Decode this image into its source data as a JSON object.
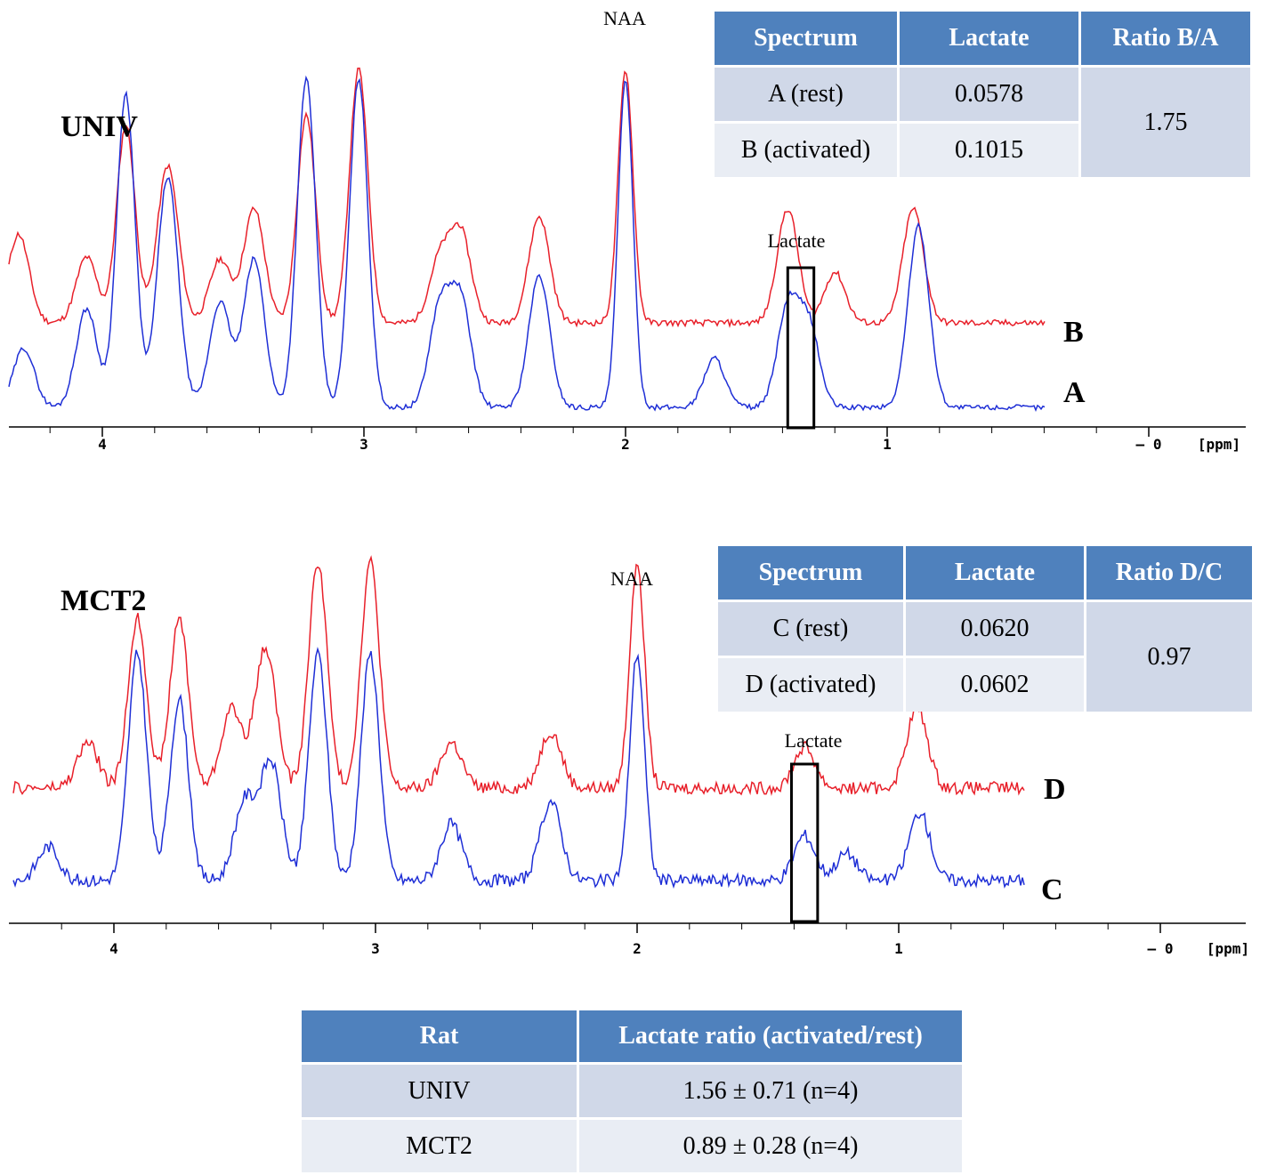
{
  "colors": {
    "spectrum_red": "#e8202a",
    "spectrum_blue": "#1f2fd6",
    "header_bg": "#4f81bd",
    "row_dark": "#d0d8e8",
    "row_light": "#e9edf4"
  },
  "chart_data": [
    {
      "type": "line",
      "title": "UNIV",
      "xlabel": "[ppm]",
      "x_axis": "reversed",
      "xlim": [
        4.35,
        -0.35
      ],
      "x_ticks": [
        "4",
        "3",
        "2",
        "1",
        "– 0"
      ],
      "annotations": [
        "NAA",
        "Lactate"
      ],
      "highlight_box_ppm": [
        1.28,
        1.38
      ],
      "series": [
        {
          "name": "B",
          "color": "#e8202a",
          "peaks": [
            [
              4.32,
              0.35
            ],
            [
              4.06,
              0.26
            ],
            [
              3.91,
              0.78
            ],
            [
              3.75,
              0.62
            ],
            [
              3.55,
              0.25
            ],
            [
              3.42,
              0.45
            ],
            [
              3.22,
              0.82
            ],
            [
              3.02,
              1.0
            ],
            [
              2.71,
              0.25
            ],
            [
              2.63,
              0.35
            ],
            [
              2.33,
              0.42
            ],
            [
              2.0,
              1.0
            ],
            [
              1.38,
              0.45
            ],
            [
              1.2,
              0.2
            ],
            [
              0.9,
              0.45
            ]
          ]
        },
        {
          "name": "A",
          "color": "#1f2fd6",
          "peaks": [
            [
              4.3,
              0.18
            ],
            [
              4.06,
              0.3
            ],
            [
              3.91,
              0.95
            ],
            [
              3.75,
              0.7
            ],
            [
              3.55,
              0.32
            ],
            [
              3.42,
              0.45
            ],
            [
              3.22,
              1.0
            ],
            [
              3.02,
              1.0
            ],
            [
              2.71,
              0.3
            ],
            [
              2.63,
              0.32
            ],
            [
              2.33,
              0.4
            ],
            [
              2.0,
              1.0
            ],
            [
              1.66,
              0.15
            ],
            [
              1.38,
              0.3
            ],
            [
              1.3,
              0.25
            ],
            [
              0.88,
              0.55
            ]
          ]
        }
      ]
    },
    {
      "type": "line",
      "title": "MCT2",
      "xlabel": "[ppm]",
      "x_axis": "reversed",
      "xlim": [
        4.35,
        -0.35
      ],
      "x_ticks": [
        "4",
        "3",
        "2",
        "1",
        "– 0"
      ],
      "annotations": [
        "NAA",
        "Lactate"
      ],
      "highlight_box_ppm": [
        1.31,
        1.41
      ],
      "series": [
        {
          "name": "D",
          "color": "#e8202a",
          "peaks": [
            [
              4.1,
              0.2
            ],
            [
              3.91,
              0.75
            ],
            [
              3.75,
              0.75
            ],
            [
              3.55,
              0.35
            ],
            [
              3.42,
              0.62
            ],
            [
              3.22,
              1.0
            ],
            [
              3.02,
              1.0
            ],
            [
              2.71,
              0.2
            ],
            [
              2.33,
              0.25
            ],
            [
              2.0,
              1.0
            ],
            [
              1.36,
              0.18
            ],
            [
              0.93,
              0.35
            ]
          ]
        },
        {
          "name": "C",
          "color": "#1f2fd6",
          "peaks": [
            [
              4.25,
              0.15
            ],
            [
              3.91,
              1.0
            ],
            [
              3.75,
              0.8
            ],
            [
              3.5,
              0.35
            ],
            [
              3.4,
              0.52
            ],
            [
              3.22,
              1.0
            ],
            [
              3.02,
              1.0
            ],
            [
              2.71,
              0.25
            ],
            [
              2.33,
              0.35
            ],
            [
              2.0,
              1.0
            ],
            [
              1.36,
              0.2
            ],
            [
              1.2,
              0.12
            ],
            [
              0.92,
              0.3
            ]
          ]
        }
      ]
    }
  ],
  "panels": {
    "univ": {
      "title": "UNIV",
      "naa": "NAA",
      "lactate": "Lactate",
      "upper_label": "B",
      "lower_label": "A",
      "axis_unit": "[ppm]",
      "ticks": [
        "4",
        "3",
        "2",
        "1",
        "– 0"
      ]
    },
    "mct2": {
      "title": "MCT2",
      "naa": "NAA",
      "lactate": "Lactate",
      "upper_label": "D",
      "lower_label": "C",
      "axis_unit": "[ppm]",
      "ticks": [
        "4",
        "3",
        "2",
        "1",
        "– 0"
      ]
    }
  },
  "tables": {
    "univ": {
      "headers": [
        "Spectrum",
        "Lactate",
        "Ratio B/A"
      ],
      "rows": [
        [
          "A (rest)",
          "0.0578"
        ],
        [
          "B (activated)",
          "0.1015"
        ]
      ],
      "ratio": "1.75"
    },
    "mct2": {
      "headers": [
        "Spectrum",
        "Lactate",
        "Ratio D/C"
      ],
      "rows": [
        [
          "C (rest)",
          "0.0620"
        ],
        [
          "D (activated)",
          "0.0602"
        ]
      ],
      "ratio": "0.97"
    },
    "summary": {
      "headers": [
        "Rat",
        "Lactate ratio (activated/rest)"
      ],
      "rows": [
        [
          "UNIV",
          "1.56 ± 0.71 (n=4)"
        ],
        [
          "MCT2",
          "0.89 ± 0.28 (n=4)"
        ]
      ]
    }
  }
}
